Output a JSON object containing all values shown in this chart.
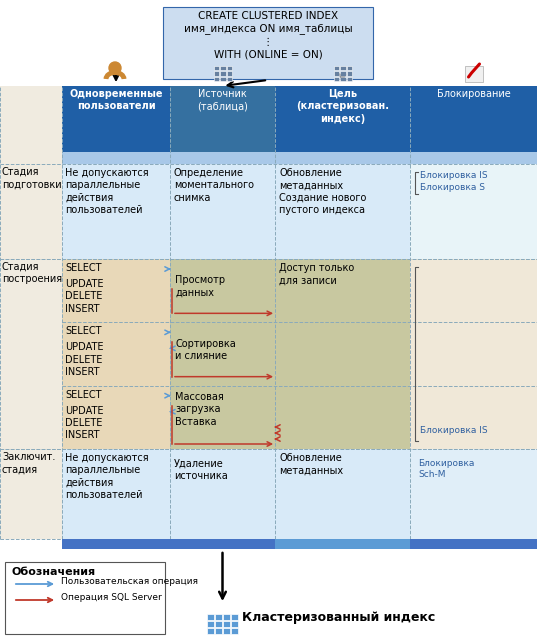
{
  "title_box": "CREATE CLUSTERED INDEX\nимя_индекса ON имя_таблицы\n⋮\nWITH (ONLINE = ON)",
  "col_headers": [
    "Одновременные\nпользователи",
    "Источник\n(таблица)",
    "Цель\n(кластеризован.\nиндекс)",
    "Блокирование"
  ],
  "col_header_colors": [
    "#1F5FA6",
    "#3A6EA8",
    "#1F5FA6",
    "#1F5FA6"
  ],
  "col_header_text_colors": [
    "#FFFFFF",
    "#FFFFFF",
    "#FFFFFF",
    "#FFFFFF"
  ],
  "header_sub_colors": [
    "#A8C8E8",
    "#A8C8E8",
    "#A8C8E8",
    "#A8C8E8"
  ],
  "prep_col_colors": [
    "#DDEEFF",
    "#DDEEFF",
    "#DDEEFF",
    "#E8F4F8"
  ],
  "build_col_colors": [
    "#D8C8A8",
    "#C8C8A8",
    "#C8C8A8",
    "#F0E8D8"
  ],
  "final_col_colors": [
    "#DDEEFF",
    "#DDEEFF",
    "#DDEEFF",
    "#E0EEF8"
  ],
  "row_label_bg": "#F5EFE0",
  "legend_arrow_blue": "#5B9BD5",
  "legend_arrow_red": "#C0392B",
  "bottom_text": "Кластеризованный индекс",
  "build_bracket_color": "#555555",
  "lock_text_color": "#4472C4",
  "dashed_border_color": "#8AAABB"
}
